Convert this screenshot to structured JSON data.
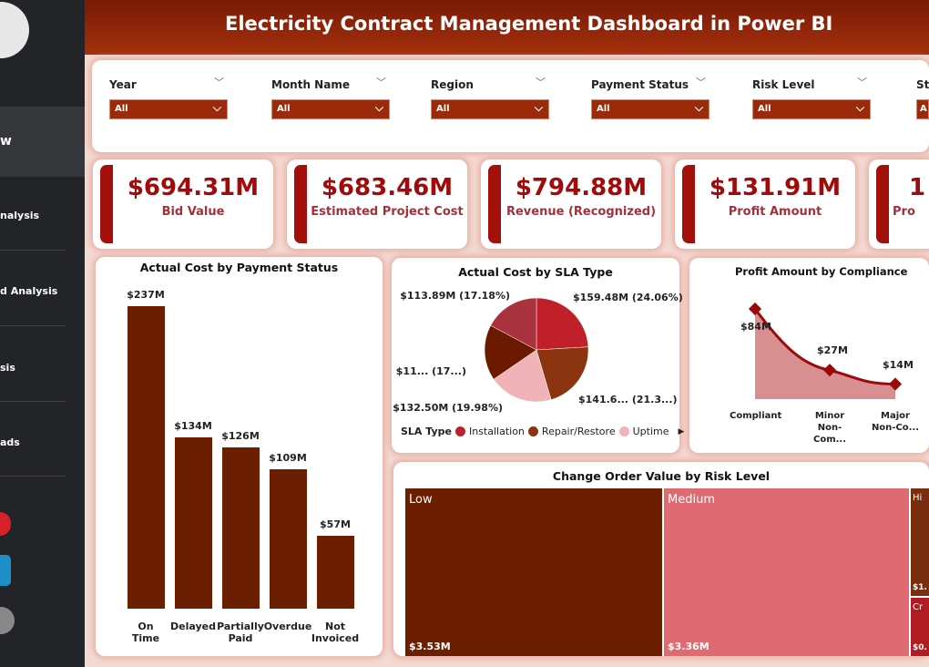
{
  "title": "Electricity Contract Management Dashboard in Power BI",
  "sidebar": {
    "items": [
      {
        "label": "w",
        "active": true
      },
      {
        "label": "nalysis"
      },
      {
        "label": "d Analysis"
      },
      {
        "label": "sis"
      },
      {
        "label": "ads"
      }
    ],
    "social": [
      {
        "icon": "youtube-icon",
        "color": "#d6202a"
      },
      {
        "icon": "linkedin-icon",
        "color": "#1b8fc6"
      },
      {
        "icon": "profile-icon",
        "color": "#888888"
      }
    ]
  },
  "filters": [
    {
      "label": "Year",
      "value": "All"
    },
    {
      "label": "Month Name",
      "value": "All"
    },
    {
      "label": "Region",
      "value": "All"
    },
    {
      "label": "Payment Status",
      "value": "All"
    },
    {
      "label": "Risk Level",
      "value": "All"
    },
    {
      "label": "St",
      "value": "A"
    }
  ],
  "kpis": [
    {
      "value": "$694.31M",
      "label": "Bid Value"
    },
    {
      "value": "$683.46M",
      "label": "Estimated Project Cost"
    },
    {
      "value": "$794.88M",
      "label": "Revenue (Recognized)"
    },
    {
      "value": "$131.91M",
      "label": "Profit Amount"
    },
    {
      "value": "1",
      "label": "Pro"
    }
  ],
  "chart_data": [
    {
      "type": "bar",
      "title": "Actual Cost by Payment Status",
      "categories": [
        "On Time",
        "Delayed",
        "Partially Paid",
        "Overdue",
        "Not Invoiced"
      ],
      "values": [
        237,
        134,
        126,
        109,
        57
      ],
      "data_labels": [
        "$237M",
        "$134M",
        "$126M",
        "$109M",
        "$57M"
      ],
      "unit": "$M",
      "color": "#6b1e00"
    },
    {
      "type": "pie",
      "title": "Actual Cost by SLA Type",
      "legend_title": "SLA Type",
      "legend": [
        "Installation",
        "Repair/Restore",
        "Uptime"
      ],
      "slices": [
        {
          "label": "$159.48M (24.06%)",
          "value": 159.48,
          "color": "#c0202a"
        },
        {
          "label": "$141.6... (21.3...)",
          "value": 141.6,
          "color": "#8a3510"
        },
        {
          "label": "$132.50M (19.98%)",
          "value": 132.5,
          "color": "#f0b4b8"
        },
        {
          "label": "$11... (17...)",
          "value": 115,
          "color": "#6b1a00"
        },
        {
          "label": "$113.89M (17.18%)",
          "value": 113.89,
          "color": "#a8323e"
        }
      ]
    },
    {
      "type": "area",
      "title": "Profit Amount by Compliance",
      "categories": [
        "Compliant",
        "Minor Non-Com...",
        "Major Non-Co..."
      ],
      "values": [
        84,
        27,
        14
      ],
      "data_labels": [
        "$84M",
        "$27M",
        "$14M"
      ],
      "color": "#a00a0a"
    },
    {
      "type": "treemap",
      "title": "Change Order Value by Risk Level",
      "items": [
        {
          "label": "Low",
          "value": "$3.53M",
          "color": "#6b1e00"
        },
        {
          "label": "Medium",
          "value": "$3.36M",
          "color": "#e06a72"
        },
        {
          "label": "Hi",
          "value": "$1.",
          "color": "#7a2e10"
        },
        {
          "label": "Cr",
          "value": "$0.",
          "color": "#b01c22"
        }
      ]
    }
  ]
}
